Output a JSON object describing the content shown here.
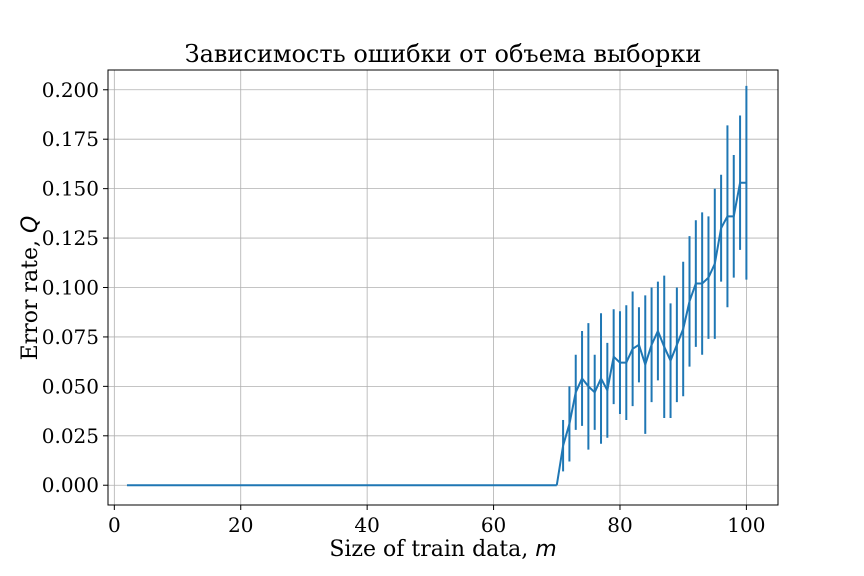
{
  "chart_data": {
    "type": "line",
    "title": "Зависимость ошибки от объема выборки",
    "xlabel": "Size of train data, ",
    "xlabel_var": "m",
    "ylabel": "Error rate, ",
    "ylabel_var": "Q",
    "xlim": [
      -1,
      105
    ],
    "ylim": [
      -0.01,
      0.21
    ],
    "x_ticks": [
      0,
      20,
      40,
      60,
      80,
      100
    ],
    "x_tick_labels": [
      "0",
      "20",
      "40",
      "60",
      "80",
      "100"
    ],
    "y_ticks": [
      0.0,
      0.025,
      0.05,
      0.075,
      0.1,
      0.125,
      0.15,
      0.175,
      0.2
    ],
    "y_tick_labels": [
      "0.000",
      "0.025",
      "0.050",
      "0.075",
      "0.100",
      "0.125",
      "0.150",
      "0.175",
      "0.200"
    ],
    "grid": true,
    "color": "#1f77b4",
    "zero_segment": {
      "x": [
        2,
        70
      ],
      "y": [
        0,
        0
      ]
    },
    "series": [
      {
        "x": [
          70,
          71,
          72,
          73,
          74,
          75,
          76,
          77,
          78,
          79,
          80,
          81,
          82,
          83,
          84,
          85,
          86,
          87,
          88,
          89,
          90,
          91,
          92,
          93,
          94,
          95,
          96,
          97,
          98,
          99,
          100
        ],
        "y": [
          0.0,
          0.02,
          0.031,
          0.047,
          0.054,
          0.05,
          0.047,
          0.054,
          0.048,
          0.065,
          0.062,
          0.062,
          0.069,
          0.071,
          0.061,
          0.071,
          0.078,
          0.07,
          0.063,
          0.071,
          0.079,
          0.093,
          0.102,
          0.102,
          0.105,
          0.112,
          0.13,
          0.136,
          0.136,
          0.153,
          0.153
        ],
        "err": [
          0.0,
          0.013,
          0.019,
          0.019,
          0.024,
          0.032,
          0.019,
          0.033,
          0.024,
          0.024,
          0.026,
          0.029,
          0.029,
          0.019,
          0.035,
          0.029,
          0.025,
          0.036,
          0.029,
          0.029,
          0.034,
          0.033,
          0.032,
          0.036,
          0.031,
          0.038,
          0.027,
          0.046,
          0.031,
          0.034,
          0.049
        ]
      }
    ]
  }
}
